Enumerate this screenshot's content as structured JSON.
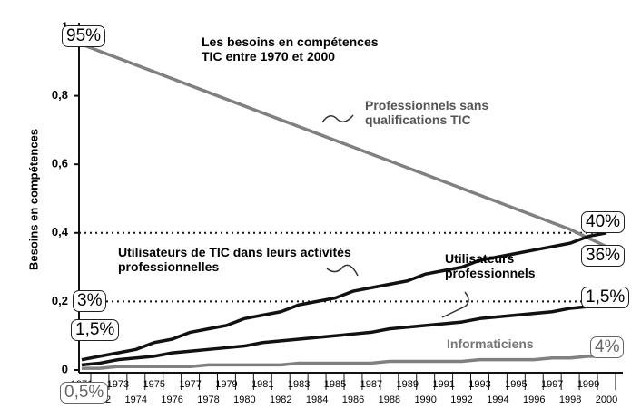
{
  "chart_data": {
    "type": "line",
    "title": "Les besoins en compétences TIC entre 1970 et 2000",
    "y_label": "Besoins en compétences",
    "categories": [
      "1971",
      "1972",
      "1973",
      "1974",
      "1975",
      "1976",
      "1977",
      "1978",
      "1979",
      "1980",
      "1981",
      "1982",
      "1983",
      "1984",
      "1985",
      "1986",
      "1987",
      "1988",
      "1989",
      "1990",
      "1991",
      "1992",
      "1993",
      "1994",
      "1995",
      "1996",
      "1997",
      "1998",
      "1999",
      "2000"
    ],
    "series": [
      {
        "name": "Professionnels sans qualifications TIC",
        "color": "#808080",
        "values": [
          0.95,
          0.93,
          0.91,
          0.89,
          0.87,
          0.85,
          0.83,
          0.81,
          0.79,
          0.77,
          0.75,
          0.73,
          0.71,
          0.69,
          0.67,
          0.65,
          0.63,
          0.61,
          0.59,
          0.57,
          0.55,
          0.53,
          0.51,
          0.49,
          0.47,
          0.45,
          0.43,
          0.41,
          0.385,
          0.36
        ]
      },
      {
        "name": "Utilisateurs de TIC dans leurs activités professionnelles",
        "color": "#111111",
        "values": [
          0.03,
          0.04,
          0.05,
          0.06,
          0.08,
          0.09,
          0.11,
          0.12,
          0.13,
          0.15,
          0.16,
          0.17,
          0.19,
          0.2,
          0.21,
          0.23,
          0.24,
          0.25,
          0.26,
          0.28,
          0.29,
          0.3,
          0.32,
          0.33,
          0.34,
          0.35,
          0.36,
          0.37,
          0.39,
          0.4
        ]
      },
      {
        "name": "Utilisateurs professionnels",
        "color": "#111111",
        "values": [
          0.015,
          0.02,
          0.03,
          0.035,
          0.04,
          0.05,
          0.055,
          0.06,
          0.065,
          0.07,
          0.08,
          0.085,
          0.09,
          0.095,
          0.1,
          0.105,
          0.11,
          0.12,
          0.125,
          0.13,
          0.135,
          0.14,
          0.15,
          0.155,
          0.16,
          0.165,
          0.17,
          0.18,
          0.185,
          0.19
        ]
      },
      {
        "name": "Informaticiens",
        "color": "#808080",
        "values": [
          0.005,
          0.005,
          0.01,
          0.01,
          0.01,
          0.01,
          0.01,
          0.015,
          0.015,
          0.015,
          0.015,
          0.015,
          0.02,
          0.02,
          0.02,
          0.02,
          0.02,
          0.025,
          0.025,
          0.025,
          0.025,
          0.025,
          0.03,
          0.03,
          0.03,
          0.03,
          0.035,
          0.035,
          0.04,
          0.04
        ]
      }
    ],
    "ylim": [
      0,
      1
    ],
    "yticks": [
      0,
      {
        "value": 0.2,
        "label": "0,2"
      },
      {
        "value": 0.4,
        "label": "0,4"
      },
      {
        "value": 0.6,
        "label": "0,6"
      },
      {
        "value": 0.8,
        "label": "0,8"
      },
      1
    ],
    "reference_lines": [
      0.4,
      0.2
    ],
    "annotations": [
      "95%",
      "40%",
      "36%",
      "1,5%",
      "4%",
      "3%",
      "1,5%",
      "0,5%"
    ]
  }
}
